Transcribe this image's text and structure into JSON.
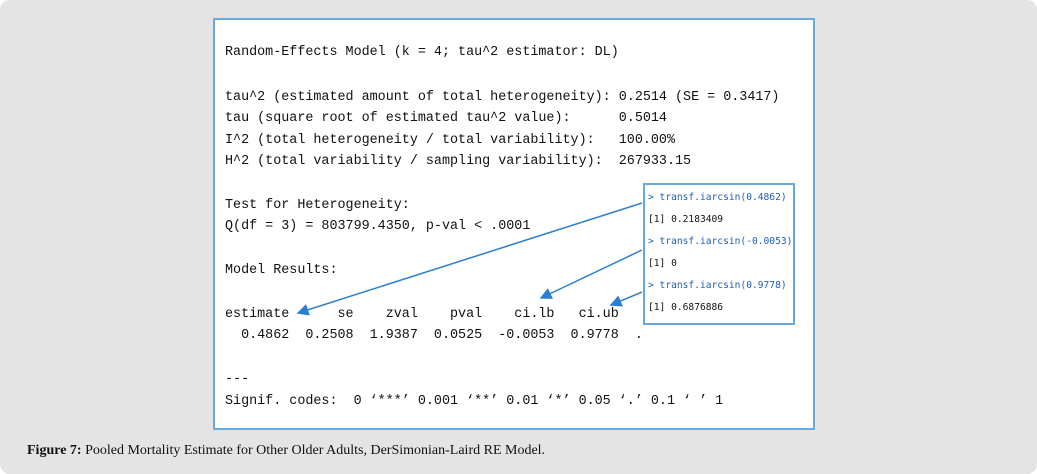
{
  "output": {
    "lines": [
      "Random-Effects Model (k = 4; tau^2 estimator: DL)",
      "tau^2 (estimated amount of total heterogeneity): 0.2514 (SE = 0.3417)",
      "tau (square root of estimated tau^2 value):      0.5014",
      "I^2 (total heterogeneity / total variability):   100.00%",
      "H^2 (total variability / sampling variability):  267933.15",
      "Test for Heterogeneity:",
      "Q(df = 3) = 803799.4350, p-val < .0001",
      "Model Results:",
      "estimate      se    zval    pval    ci.lb   ci.ub",
      "  0.4862  0.2508  1.9387  0.0525  -0.0053  0.9778  .",
      "---",
      "Signif. codes:  0 ‘***’ 0.001 ‘**’ 0.01 ‘*’ 0.05 ‘.’ 0.1 ‘ ’ 1"
    ]
  },
  "console": {
    "lines": [
      "> transf.iarcsin(0.4862)",
      "[1] 0.2183409",
      "> transf.iarcsin(-0.0053)",
      "[1] 0",
      "> transf.iarcsin(0.9778)",
      "[1] 0.6876886"
    ]
  },
  "caption": {
    "label": "Figure 7:",
    "text": "Pooled Mortality Estimate for Other Older Adults, DerSimonian-Laird RE Model."
  }
}
